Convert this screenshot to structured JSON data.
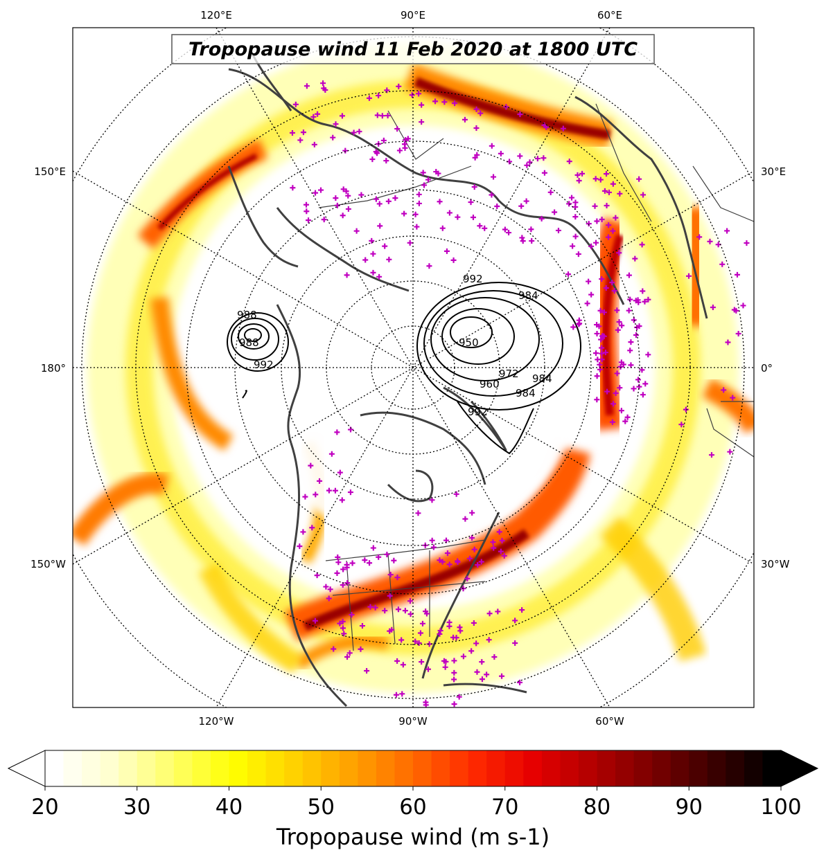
{
  "title": "Tropopause wind 11 Feb 2020 at 1800 UTC",
  "projection": "north-polar-stereographic",
  "longitude_labels": {
    "top": [
      "120°E",
      "90°E",
      "60°E"
    ],
    "left": [
      "150°E",
      "180°",
      "150°W"
    ],
    "right": [
      "30°E",
      "0°",
      "30°W"
    ],
    "bottom": [
      "120°W",
      "90°W",
      "60°W"
    ]
  },
  "colorbar": {
    "label": "Tropopause wind (m s-1)",
    "ticks": [
      "20",
      "30",
      "40",
      "50",
      "60",
      "70",
      "80",
      "90",
      "100"
    ],
    "min": 20,
    "max": 100,
    "extend": "both",
    "colormap": "hot_r",
    "colors": [
      "#ffffff",
      "#ffffcc",
      "#ffff66",
      "#ffff00",
      "#ffd200",
      "#ffa000",
      "#ff6a00",
      "#ff2a00",
      "#e60000",
      "#b20000",
      "#7a0000",
      "#3d0000",
      "#000000"
    ]
  },
  "contours": {
    "variable": "pressure (hPa)",
    "labels": [
      "992",
      "984",
      "972",
      "960",
      "950",
      "988",
      "992",
      "984",
      "992",
      "988",
      "984"
    ]
  },
  "markers": {
    "symbol": "+",
    "color": "#c000c0"
  },
  "colors": {
    "coastline": "#404040",
    "graticule": "#000000",
    "frame": "#000000"
  }
}
